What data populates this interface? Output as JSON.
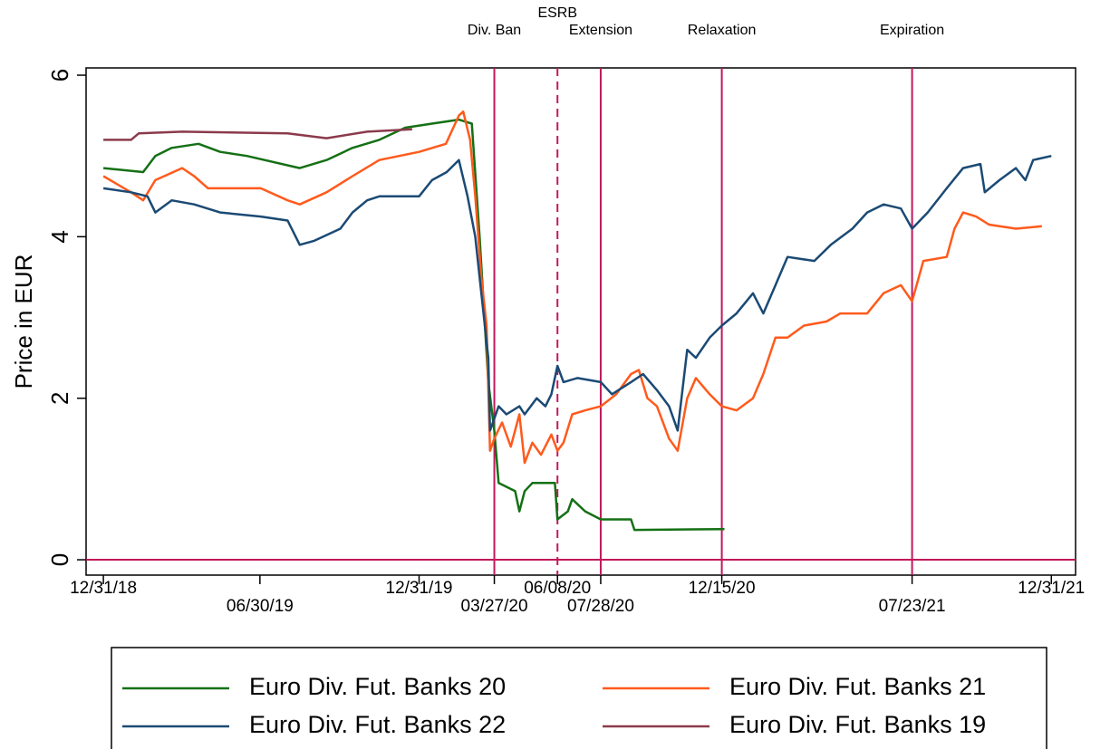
{
  "chart_data": {
    "type": "line",
    "y_label": "Price in EUR",
    "ylim": [
      -0.19,
      6.09
    ],
    "yticks": [
      0,
      2,
      4,
      6
    ],
    "xlim": [
      "12/11/18",
      "01/28/22"
    ],
    "xticks": [
      "12/31/18",
      "06/30/19",
      "12/31/19",
      "03/27/20",
      "06/08/20",
      "07/28/20",
      "12/15/20",
      "07/23/21",
      "12/31/21"
    ],
    "hline": 0,
    "event_color": "#c2185b",
    "events": [
      {
        "x": "03/27/20",
        "label": "Div. Ban",
        "style": "solid"
      },
      {
        "x": "06/08/20",
        "label": "ESRB",
        "style": "dashed"
      },
      {
        "x": "07/28/20",
        "label": "Extension",
        "style": "solid"
      },
      {
        "x": "12/15/20",
        "label": "Relaxation",
        "style": "solid"
      },
      {
        "x": "07/23/21",
        "label": "Expiration",
        "style": "solid"
      }
    ],
    "series": [
      {
        "name": "Euro Div. Fut. Banks 20",
        "color": "#157015",
        "x": [
          "12/31/18",
          "02/15/19",
          "03/01/19",
          "03/20/19",
          "04/20/19",
          "05/15/19",
          "06/15/19",
          "08/15/19",
          "09/15/19",
          "10/15/19",
          "11/15/19",
          "12/15/19",
          "01/15/20",
          "02/15/20",
          "03/01/20",
          "03/10/20",
          "03/20/20",
          "03/27/20",
          "04/01/20",
          "04/20/20",
          "04/25/20",
          "05/01/20",
          "05/10/20",
          "06/05/20",
          "06/08/20",
          "06/20/20",
          "06/25/20",
          "07/10/20",
          "07/28/20",
          "09/01/20",
          "09/05/20",
          "12/15/20",
          "12/18/20"
        ],
        "values": [
          4.85,
          4.8,
          5.0,
          5.1,
          5.15,
          5.05,
          5.0,
          4.85,
          4.95,
          5.1,
          5.2,
          5.35,
          5.4,
          5.45,
          5.4,
          4.0,
          2.2,
          1.6,
          0.95,
          0.85,
          0.6,
          0.85,
          0.95,
          0.95,
          0.5,
          0.6,
          0.75,
          0.6,
          0.5,
          0.5,
          0.37,
          0.38,
          0.38
        ]
      },
      {
        "name": "Euro Div. Fut. Banks 21",
        "color": "#ff5a1c",
        "x": [
          "12/31/18",
          "02/01/19",
          "02/15/19",
          "03/01/19",
          "04/01/19",
          "04/15/19",
          "05/01/19",
          "06/01/19",
          "07/01/19",
          "08/01/19",
          "08/15/19",
          "09/15/19",
          "10/15/19",
          "11/15/19",
          "12/31/19",
          "01/31/20",
          "02/15/20",
          "02/20/20",
          "02/28/20",
          "03/05/20",
          "03/12/20",
          "03/18/20",
          "03/22/20",
          "03/27/20",
          "04/05/20",
          "04/15/20",
          "04/25/20",
          "05/01/20",
          "05/10/20",
          "05/20/20",
          "06/01/20",
          "06/08/20",
          "06/15/20",
          "06/25/20",
          "07/10/20",
          "07/28/20",
          "08/15/20",
          "09/01/20",
          "09/10/20",
          "09/20/20",
          "10/01/20",
          "10/15/20",
          "10/25/20",
          "11/05/20",
          "11/15/20",
          "12/01/20",
          "12/15/20",
          "01/01/21",
          "01/20/21",
          "02/01/21",
          "02/15/21",
          "03/01/21",
          "03/20/21",
          "04/15/21",
          "05/01/21",
          "06/01/21",
          "06/20/21",
          "07/10/21",
          "07/23/21",
          "08/05/21",
          "09/01/21",
          "09/10/21",
          "09/20/21",
          "10/05/21",
          "10/20/21",
          "11/20/21",
          "12/20/21"
        ],
        "values": [
          4.75,
          4.55,
          4.45,
          4.7,
          4.85,
          4.75,
          4.6,
          4.6,
          4.6,
          4.45,
          4.4,
          4.55,
          4.75,
          4.95,
          5.05,
          5.15,
          5.5,
          5.55,
          5.2,
          4.5,
          3.5,
          2.9,
          1.35,
          1.5,
          1.7,
          1.4,
          1.8,
          1.2,
          1.45,
          1.3,
          1.55,
          1.35,
          1.45,
          1.8,
          1.85,
          1.9,
          2.05,
          2.3,
          2.35,
          2.0,
          1.9,
          1.5,
          1.35,
          2.0,
          2.25,
          2.05,
          1.9,
          1.85,
          2.0,
          2.3,
          2.75,
          2.75,
          2.9,
          2.95,
          3.05,
          3.05,
          3.3,
          3.4,
          3.2,
          3.7,
          3.75,
          4.1,
          4.3,
          4.25,
          4.15,
          4.1,
          4.13
        ]
      },
      {
        "name": "Euro Div. Fut. Banks 22",
        "color": "#1b4a74",
        "x": [
          "12/31/18",
          "02/01/19",
          "02/20/19",
          "03/01/19",
          "03/20/19",
          "04/15/19",
          "05/15/19",
          "07/01/19",
          "08/01/19",
          "08/15/19",
          "09/01/19",
          "10/01/19",
          "10/15/19",
          "11/01/19",
          "11/15/19",
          "12/31/19",
          "01/15/20",
          "02/01/20",
          "02/15/20",
          "02/25/20",
          "03/05/20",
          "03/12/20",
          "03/20/20",
          "03/22/20",
          "04/01/20",
          "04/10/20",
          "04/25/20",
          "05/01/20",
          "05/15/20",
          "05/25/20",
          "06/01/20",
          "06/08/20",
          "06/15/20",
          "07/01/20",
          "07/28/20",
          "08/10/20",
          "09/01/20",
          "09/15/20",
          "10/01/20",
          "10/15/20",
          "10/25/20",
          "11/05/20",
          "11/15/20",
          "12/01/20",
          "12/15/20",
          "01/01/21",
          "01/20/21",
          "02/01/21",
          "02/15/21",
          "03/01/21",
          "04/01/21",
          "04/20/21",
          "05/15/21",
          "06/01/21",
          "06/20/21",
          "07/10/21",
          "07/23/21",
          "08/10/21",
          "09/01/21",
          "09/20/21",
          "10/10/21",
          "10/15/21",
          "11/01/21",
          "11/20/21",
          "12/01/21",
          "12/10/21",
          "12/31/21"
        ],
        "values": [
          4.6,
          4.55,
          4.5,
          4.3,
          4.45,
          4.4,
          4.3,
          4.25,
          4.2,
          3.9,
          3.95,
          4.1,
          4.3,
          4.45,
          4.5,
          4.5,
          4.7,
          4.8,
          4.95,
          4.5,
          4.0,
          3.3,
          2.5,
          1.6,
          1.9,
          1.8,
          1.9,
          1.8,
          2.0,
          1.9,
          2.05,
          2.4,
          2.2,
          2.25,
          2.2,
          2.05,
          2.2,
          2.3,
          2.1,
          1.9,
          1.6,
          2.6,
          2.5,
          2.75,
          2.9,
          3.05,
          3.3,
          3.05,
          3.4,
          3.75,
          3.7,
          3.9,
          4.1,
          4.3,
          4.4,
          4.35,
          4.1,
          4.3,
          4.6,
          4.85,
          4.9,
          4.55,
          4.7,
          4.85,
          4.7,
          4.95,
          5.0
        ]
      },
      {
        "name": "Euro Div. Fut. Banks 19",
        "color": "#8b3a4c",
        "x": [
          "12/31/18",
          "02/01/19",
          "02/10/19",
          "04/01/19",
          "08/01/19",
          "09/15/19",
          "11/01/19",
          "12/23/19"
        ],
        "values": [
          5.2,
          5.2,
          5.28,
          5.3,
          5.28,
          5.22,
          5.3,
          5.33
        ]
      }
    ]
  }
}
